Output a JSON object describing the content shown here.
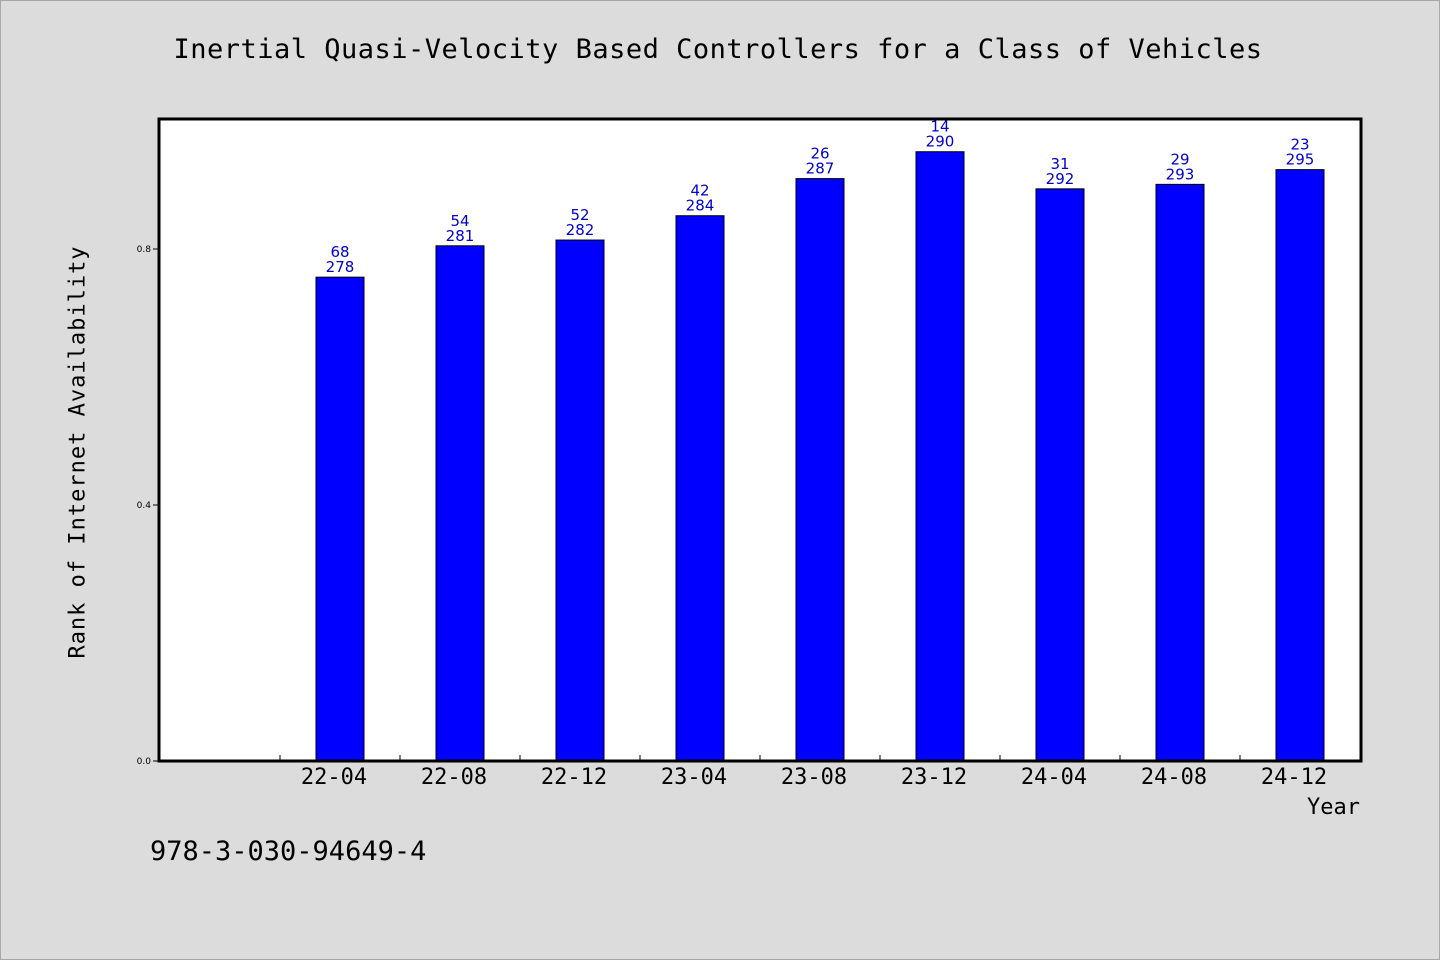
{
  "chart_data": {
    "type": "bar",
    "title": "Inertial Quasi-Velocity Based Controllers for a Class of Vehicles",
    "xlabel": "Year",
    "ylabel": "Rank of Internet Availability",
    "categories": [
      "22-04",
      "22-08",
      "22-12",
      "23-04",
      "23-08",
      "23-12",
      "24-04",
      "24-08",
      "24-12"
    ],
    "values": [
      0.756,
      0.805,
      0.814,
      0.852,
      0.91,
      0.952,
      0.894,
      0.901,
      0.924
    ],
    "label_top": [
      "68",
      "54",
      "52",
      "42",
      "26",
      "14",
      "31",
      "29",
      "23"
    ],
    "label_bottom": [
      "278",
      "281",
      "282",
      "284",
      "287",
      "290",
      "292",
      "293",
      "295"
    ],
    "ylim": [
      0.0,
      1.0
    ],
    "yticks": [
      "0.0",
      "0.4",
      "0.8"
    ],
    "grid": false,
    "bar_color": "#0000ff",
    "label_color": "#0000cc"
  },
  "footer": {
    "isbn": "978-3-030-94649-4"
  }
}
